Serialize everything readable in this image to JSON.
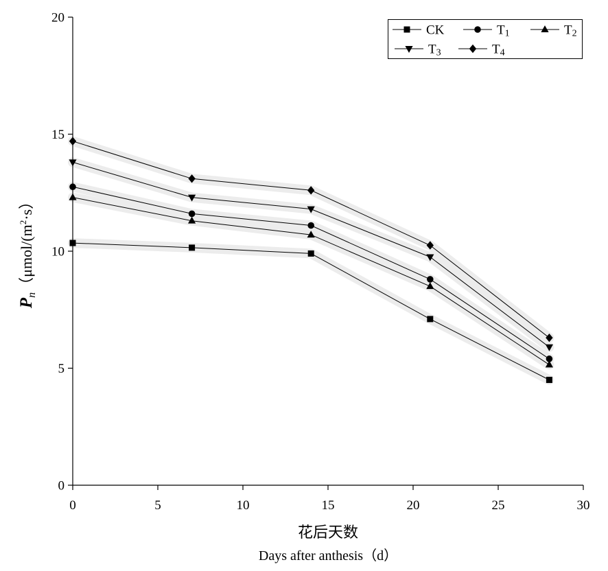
{
  "chart_data": {
    "type": "line",
    "x": [
      0,
      7,
      14,
      21,
      28
    ],
    "series": [
      {
        "name": "CK",
        "marker": "square",
        "values": [
          10.35,
          10.15,
          9.9,
          7.1,
          4.5
        ]
      },
      {
        "name": "T1",
        "marker": "circle",
        "values": [
          12.75,
          11.6,
          11.1,
          8.8,
          5.4
        ]
      },
      {
        "name": "T2",
        "marker": "triangle-up",
        "values": [
          12.3,
          11.3,
          10.7,
          8.5,
          5.15
        ]
      },
      {
        "name": "T3",
        "marker": "triangle-down",
        "values": [
          13.8,
          12.3,
          11.8,
          9.75,
          5.9
        ]
      },
      {
        "name": "T4",
        "marker": "diamond",
        "values": [
          14.7,
          13.1,
          12.6,
          10.25,
          6.3
        ]
      }
    ],
    "xlabel": [
      "花后天数",
      "Days after anthesis（d）"
    ],
    "ylabel": {
      "symbol": "P",
      "subscript": "n",
      "unit_start": "（μmol/(m",
      "unit_superscript": "2",
      "unit_end": "·s）"
    },
    "xlim": [
      0,
      30
    ],
    "ylim": [
      0,
      20
    ],
    "xticks": [
      0,
      5,
      10,
      15,
      20,
      25,
      30
    ],
    "yticks": [
      0,
      5,
      10,
      15,
      20
    ],
    "grid": false,
    "legend_placement": "top-right",
    "colors": {
      "line": "#000000",
      "band": "#ececec",
      "background": "#ffffff"
    }
  }
}
